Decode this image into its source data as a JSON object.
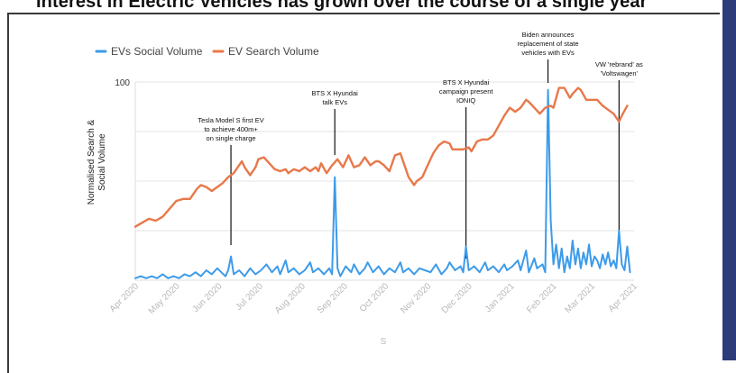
{
  "page": {
    "headline": "Interest in Electric Vehicles has grown over the course of a single year"
  },
  "chart_data": {
    "type": "line",
    "title": "",
    "xlabel": "S",
    "ylabel_lines": [
      "Normalised Search &",
      "Social Volume"
    ],
    "y_tick_labels": [
      "100"
    ],
    "ylim": [
      0,
      100
    ],
    "x_range_days": [
      0,
      365
    ],
    "x_ticks": [
      {
        "label": "Apr 2020",
        "day": 0
      },
      {
        "label": "May 2020",
        "day": 30
      },
      {
        "label": "Jun 2020",
        "day": 61
      },
      {
        "label": "Jul 2020",
        "day": 91
      },
      {
        "label": "Aug 2020",
        "day": 122
      },
      {
        "label": "Sep 2020",
        "day": 153
      },
      {
        "label": "Oct 2020",
        "day": 183
      },
      {
        "label": "Nov 2020",
        "day": 214
      },
      {
        "label": "Dec 2020",
        "day": 244
      },
      {
        "label": "Jan 2021",
        "day": 275
      },
      {
        "label": "Feb 2021",
        "day": 306
      },
      {
        "label": "Mar 2021",
        "day": 334
      },
      {
        "label": "Apr 2021",
        "day": 365
      }
    ],
    "gridlines": [
      25,
      50,
      75,
      100
    ],
    "legend_position": "top-left",
    "series": [
      {
        "name": "EVs Social Volume",
        "color": "#3d9be9",
        "points": [
          [
            0,
            1
          ],
          [
            4,
            2
          ],
          [
            8,
            1
          ],
          [
            12,
            2
          ],
          [
            16,
            1
          ],
          [
            20,
            3
          ],
          [
            24,
            1
          ],
          [
            28,
            2
          ],
          [
            32,
            1
          ],
          [
            36,
            3
          ],
          [
            40,
            2
          ],
          [
            44,
            4
          ],
          [
            48,
            2
          ],
          [
            52,
            5
          ],
          [
            56,
            3
          ],
          [
            60,
            6
          ],
          [
            63,
            4
          ],
          [
            66,
            2
          ],
          [
            68,
            5
          ],
          [
            70,
            12
          ],
          [
            72,
            3
          ],
          [
            76,
            5
          ],
          [
            80,
            2
          ],
          [
            84,
            6
          ],
          [
            88,
            3
          ],
          [
            92,
            5
          ],
          [
            96,
            8
          ],
          [
            100,
            4
          ],
          [
            104,
            7
          ],
          [
            106,
            3
          ],
          [
            110,
            10
          ],
          [
            112,
            4
          ],
          [
            116,
            6
          ],
          [
            120,
            3
          ],
          [
            124,
            5
          ],
          [
            128,
            9
          ],
          [
            130,
            4
          ],
          [
            134,
            6
          ],
          [
            138,
            3
          ],
          [
            142,
            6
          ],
          [
            144,
            3
          ],
          [
            146,
            52
          ],
          [
            148,
            6
          ],
          [
            150,
            2
          ],
          [
            154,
            7
          ],
          [
            158,
            4
          ],
          [
            160,
            8
          ],
          [
            164,
            3
          ],
          [
            168,
            6
          ],
          [
            170,
            9
          ],
          [
            174,
            4
          ],
          [
            178,
            7
          ],
          [
            182,
            3
          ],
          [
            186,
            6
          ],
          [
            190,
            4
          ],
          [
            194,
            9
          ],
          [
            196,
            4
          ],
          [
            200,
            6
          ],
          [
            204,
            3
          ],
          [
            208,
            6
          ],
          [
            212,
            5
          ],
          [
            216,
            4
          ],
          [
            220,
            8
          ],
          [
            224,
            3
          ],
          [
            228,
            6
          ],
          [
            230,
            9
          ],
          [
            234,
            5
          ],
          [
            238,
            7
          ],
          [
            240,
            4
          ],
          [
            242,
            17
          ],
          [
            244,
            5
          ],
          [
            248,
            7
          ],
          [
            252,
            4
          ],
          [
            256,
            9
          ],
          [
            258,
            5
          ],
          [
            262,
            7
          ],
          [
            266,
            4
          ],
          [
            270,
            8
          ],
          [
            272,
            5
          ],
          [
            276,
            7
          ],
          [
            280,
            10
          ],
          [
            282,
            5
          ],
          [
            286,
            15
          ],
          [
            288,
            4
          ],
          [
            292,
            11
          ],
          [
            294,
            6
          ],
          [
            298,
            8
          ],
          [
            300,
            4
          ],
          [
            302,
            96
          ],
          [
            304,
            30
          ],
          [
            306,
            8
          ],
          [
            308,
            18
          ],
          [
            310,
            6
          ],
          [
            312,
            16
          ],
          [
            314,
            4
          ],
          [
            316,
            12
          ],
          [
            318,
            6
          ],
          [
            320,
            20
          ],
          [
            322,
            8
          ],
          [
            324,
            16
          ],
          [
            326,
            6
          ],
          [
            328,
            14
          ],
          [
            330,
            8
          ],
          [
            332,
            18
          ],
          [
            334,
            7
          ],
          [
            336,
            12
          ],
          [
            338,
            10
          ],
          [
            340,
            6
          ],
          [
            342,
            13
          ],
          [
            344,
            8
          ],
          [
            346,
            14
          ],
          [
            348,
            7
          ],
          [
            350,
            10
          ],
          [
            352,
            6
          ],
          [
            354,
            25
          ],
          [
            356,
            8
          ],
          [
            358,
            5
          ],
          [
            360,
            17
          ],
          [
            362,
            4
          ]
        ]
      },
      {
        "name": "EV Search Volume",
        "color": "#e8784a",
        "points": [
          [
            0,
            27
          ],
          [
            5,
            29
          ],
          [
            10,
            31
          ],
          [
            15,
            30
          ],
          [
            20,
            32
          ],
          [
            25,
            36
          ],
          [
            30,
            40
          ],
          [
            35,
            41
          ],
          [
            40,
            41
          ],
          [
            45,
            46
          ],
          [
            48,
            48
          ],
          [
            52,
            47
          ],
          [
            56,
            45
          ],
          [
            60,
            47
          ],
          [
            64,
            49
          ],
          [
            68,
            52
          ],
          [
            72,
            54
          ],
          [
            76,
            58
          ],
          [
            78,
            60
          ],
          [
            80,
            57
          ],
          [
            84,
            53
          ],
          [
            88,
            57
          ],
          [
            90,
            61
          ],
          [
            94,
            62
          ],
          [
            98,
            59
          ],
          [
            102,
            56
          ],
          [
            106,
            55
          ],
          [
            110,
            56
          ],
          [
            112,
            54
          ],
          [
            116,
            56
          ],
          [
            120,
            55
          ],
          [
            124,
            57
          ],
          [
            128,
            55
          ],
          [
            132,
            57
          ],
          [
            134,
            55
          ],
          [
            136,
            59
          ],
          [
            140,
            54
          ],
          [
            144,
            58
          ],
          [
            148,
            61
          ],
          [
            152,
            57
          ],
          [
            156,
            63
          ],
          [
            160,
            57
          ],
          [
            164,
            58
          ],
          [
            168,
            62
          ],
          [
            172,
            58
          ],
          [
            176,
            60
          ],
          [
            178,
            60
          ],
          [
            182,
            58
          ],
          [
            186,
            55
          ],
          [
            190,
            63
          ],
          [
            194,
            64
          ],
          [
            198,
            56
          ],
          [
            200,
            52
          ],
          [
            204,
            48
          ],
          [
            206,
            50
          ],
          [
            210,
            52
          ],
          [
            214,
            58
          ],
          [
            218,
            64
          ],
          [
            222,
            68
          ],
          [
            226,
            70
          ],
          [
            230,
            69
          ],
          [
            232,
            66
          ],
          [
            236,
            66
          ],
          [
            240,
            66
          ],
          [
            244,
            67
          ],
          [
            246,
            65
          ],
          [
            250,
            70
          ],
          [
            254,
            71
          ],
          [
            258,
            71
          ],
          [
            262,
            73
          ],
          [
            266,
            78
          ],
          [
            270,
            83
          ],
          [
            274,
            87
          ],
          [
            278,
            85
          ],
          [
            282,
            87
          ],
          [
            286,
            91
          ],
          [
            288,
            90
          ],
          [
            292,
            87
          ],
          [
            296,
            84
          ],
          [
            300,
            87
          ],
          [
            304,
            88
          ],
          [
            306,
            87
          ],
          [
            310,
            97
          ],
          [
            314,
            97
          ],
          [
            318,
            92
          ],
          [
            320,
            94
          ],
          [
            324,
            97
          ],
          [
            326,
            96
          ],
          [
            330,
            91
          ],
          [
            334,
            91
          ],
          [
            338,
            91
          ],
          [
            342,
            88
          ],
          [
            346,
            86
          ],
          [
            350,
            84
          ],
          [
            354,
            80
          ],
          [
            356,
            83
          ],
          [
            360,
            88
          ]
        ]
      }
    ],
    "annotations": [
      {
        "lines": [
          "Tesla Model S first EV",
          "to achieve 400m+",
          "on single charge"
        ],
        "day": 70
      },
      {
        "lines": [
          "BTS X Hyundai",
          "talk EVs"
        ],
        "day": 146
      },
      {
        "lines": [
          "BTS X Hyundai",
          "campaign present",
          "IONIQ"
        ],
        "day": 242
      },
      {
        "lines": [
          "Biden announces",
          "replacement of state",
          "vehicles with EVs"
        ],
        "day": 302
      },
      {
        "lines": [
          "VW 'rebrand' as",
          "'Voltswagen'"
        ],
        "day": 354
      }
    ]
  }
}
